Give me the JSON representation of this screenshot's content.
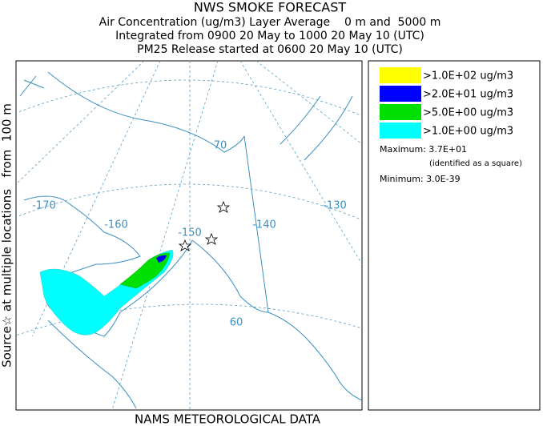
{
  "header": {
    "title": "NWS SMOKE FORECAST",
    "lines": [
      "Air Concentration (ug/m3) Layer Average    0 m and  5000 m",
      "Integrated from 0900 20 May to 1000 20 May 10 (UTC)",
      "PM25 Release started at 0600 20 May 10 (UTC)"
    ]
  },
  "side_label": "Source☆ at multiple locations   from  100 m",
  "map": {
    "labels": [
      "-170",
      "-160",
      "-150",
      "-140",
      "-130",
      "70",
      "60"
    ]
  },
  "legend": {
    "items": [
      {
        "label": ">1.0E+02 ug/m3",
        "color": "#ffff00"
      },
      {
        "label": ">2.0E+01 ug/m3",
        "color": "#0000ff"
      },
      {
        "label": ">5.0E+00 ug/m3",
        "color": "#00e000"
      },
      {
        "label": ">1.0E+00 ug/m3",
        "color": "#00ffff"
      }
    ],
    "maximum": "Maximum: 3.7E+01",
    "maximum_note": "(identified as a square)",
    "minimum": "Minimum: 3.0E-39"
  },
  "footer": "NAMS METEOROLOGICAL DATA"
}
